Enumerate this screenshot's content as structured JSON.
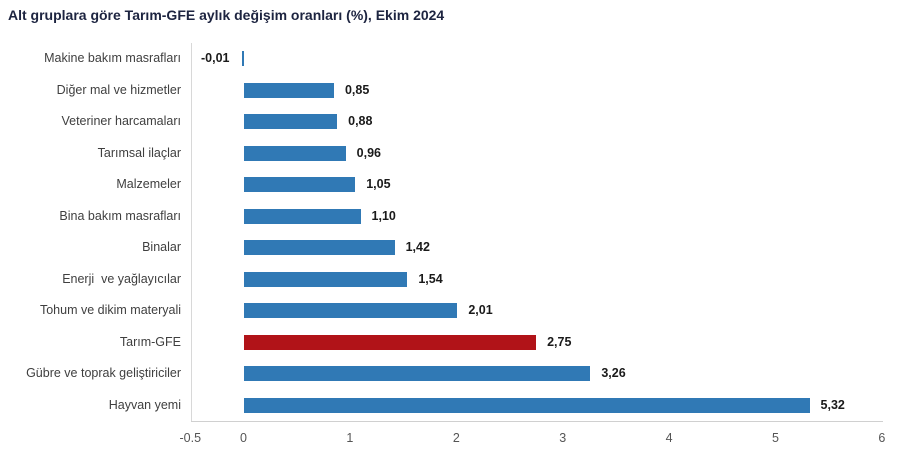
{
  "title": "Alt gruplara göre Tarım-GFE aylık değişim oranları (%), Ekim 2024",
  "chart_data": {
    "type": "bar",
    "orientation": "horizontal",
    "title": "Alt gruplara göre Tarım-GFE aylık değişim oranları (%), Ekim 2024",
    "categories": [
      "Makine bakım masrafları",
      "Diğer mal ve hizmetler",
      "Veteriner harcamaları",
      "Tarımsal ilaçlar",
      "Malzemeler",
      "Bina bakım masrafları",
      "Binalar",
      "Enerji  ve yağlayıcılar",
      "Tohum ve dikim materyali",
      "Tarım-GFE",
      "Gübre ve toprak geliştiriciler",
      "Hayvan yemi"
    ],
    "values": [
      -0.01,
      0.85,
      0.88,
      0.96,
      1.05,
      1.1,
      1.42,
      1.54,
      2.01,
      2.75,
      3.26,
      5.32
    ],
    "value_labels": [
      "-0,01",
      "0,85",
      "0,88",
      "0,96",
      "1,05",
      "1,10",
      "1,42",
      "1,54",
      "2,01",
      "2,75",
      "3,26",
      "5,32"
    ],
    "highlight_category": "Tarım-GFE",
    "colors": {
      "bar": "#3079b5",
      "highlight": "#b11318",
      "title": "#1d2440",
      "category_label": "#3f3f3f",
      "value_label": "#1a1a1a",
      "tick_label": "#555555",
      "axis_line": "#d0d0d0"
    },
    "xlim": [
      -0.5,
      6
    ],
    "x_ticks": [
      -0.5,
      0,
      1,
      2,
      3,
      4,
      5,
      6
    ],
    "x_tick_labels": [
      "-0.5",
      "0",
      "1",
      "2",
      "3",
      "4",
      "5",
      "6"
    ],
    "grid": false,
    "legend": false,
    "xlabel": "",
    "ylabel": ""
  }
}
